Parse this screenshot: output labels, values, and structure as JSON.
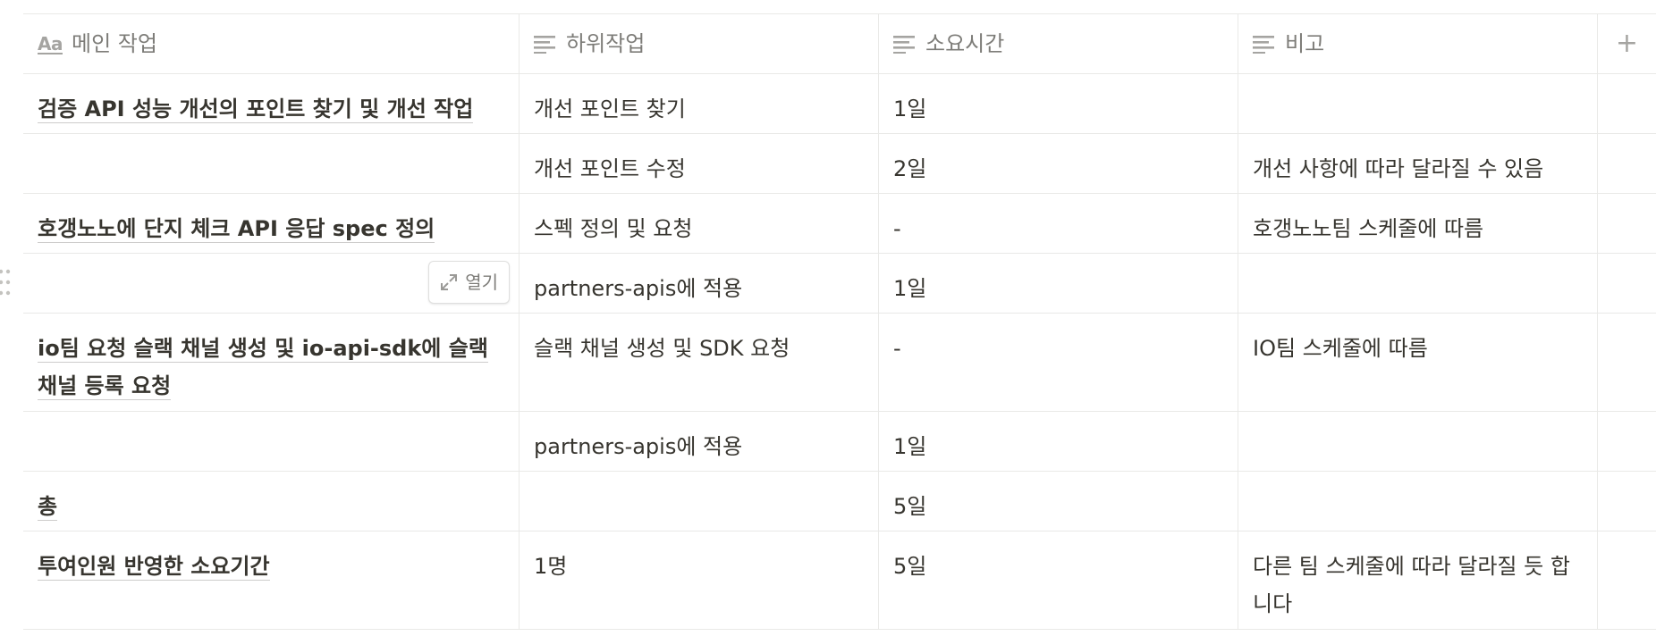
{
  "table": {
    "columns": [
      {
        "label": "메인 작업",
        "icon": "title-property-icon"
      },
      {
        "label": "하위작업",
        "icon": "text-property-icon"
      },
      {
        "label": "소요시간",
        "icon": "text-property-icon"
      },
      {
        "label": "비고",
        "icon": "text-property-icon"
      }
    ],
    "title_icon_text": "Aa",
    "add_column_label": "+",
    "open_label": "열기",
    "rows": [
      {
        "main": "검증 API 성능 개선의 포인트 찾기 및 개선 작업",
        "sub": "개선 포인트 찾기",
        "time": "1일",
        "note": ""
      },
      {
        "main": "",
        "sub": "개선 포인트 수정",
        "time": "2일",
        "note": "개선 사항에 따라 달라질 수 있음"
      },
      {
        "main": "호갱노노에 단지 체크 API 응답 spec 정의",
        "sub": "스펙 정의 및 요청",
        "time": "-",
        "note": "호갱노노팀 스케줄에 따름"
      },
      {
        "main": "",
        "sub": "partners-apis에 적용",
        "time": "1일",
        "note": ""
      },
      {
        "main": "io팀 요청 슬랙 채널 생성 및 io-api-sdk에 슬랙 채널 등록 요청",
        "sub": "슬랙 채널 생성 및 SDK 요청",
        "time": "-",
        "note": "IO팀 스케줄에 따름"
      },
      {
        "main": "",
        "sub": "partners-apis에 적용",
        "time": "1일",
        "note": ""
      },
      {
        "main": "총",
        "sub": "",
        "time": "5일",
        "note": ""
      },
      {
        "main": "투여인원 반영한 소요기간",
        "sub": "1명",
        "time": "5일",
        "note": "다른 팀 스케줄에 따라 달라질 듯 합니다"
      }
    ]
  }
}
